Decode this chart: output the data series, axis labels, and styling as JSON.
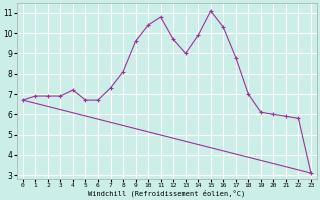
{
  "xlabel": "Windchill (Refroidissement éolien,°C)",
  "bg_color": "#cceee8",
  "grid_color": "#ffffff",
  "line_color": "#993399",
  "x_curve": [
    0,
    1,
    2,
    3,
    4,
    5,
    6,
    7,
    8,
    9,
    10,
    11,
    12,
    13,
    14,
    15,
    16,
    17,
    18,
    19,
    20,
    21,
    22,
    23
  ],
  "y_curve": [
    6.7,
    6.9,
    6.9,
    6.9,
    7.2,
    6.7,
    6.7,
    7.3,
    8.1,
    9.6,
    10.4,
    10.8,
    9.7,
    9.0,
    9.9,
    11.1,
    10.3,
    8.8,
    7.0,
    6.1,
    6.0,
    5.9,
    5.8,
    3.1
  ],
  "y_linear_start": 6.7,
  "y_linear_end": 3.1,
  "ylim": [
    2.8,
    11.5
  ],
  "xlim": [
    -0.5,
    23.5
  ],
  "yticks": [
    3,
    4,
    5,
    6,
    7,
    8,
    9,
    10,
    11
  ],
  "xticks": [
    0,
    1,
    2,
    3,
    4,
    5,
    6,
    7,
    8,
    9,
    10,
    11,
    12,
    13,
    14,
    15,
    16,
    17,
    18,
    19,
    20,
    21,
    22,
    23
  ]
}
